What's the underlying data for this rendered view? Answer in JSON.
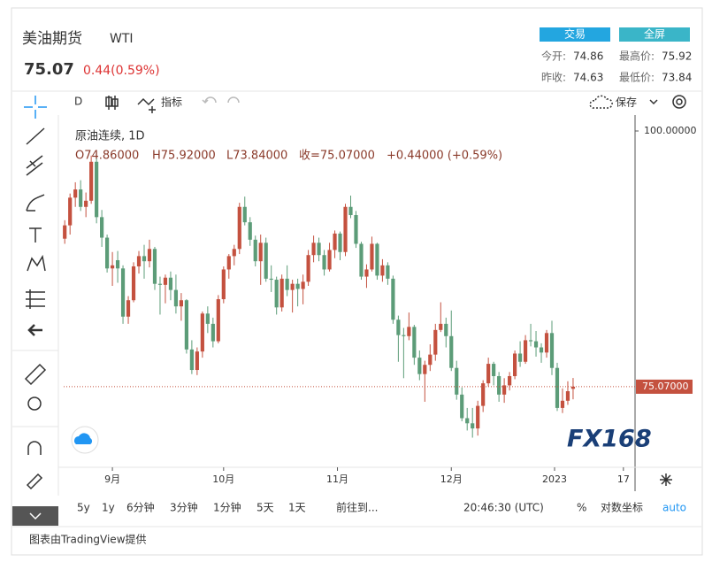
{
  "header": {
    "title": "美油期货",
    "symbol": "WTI",
    "price": "75.07",
    "change": "0.44(0.59%)",
    "trade_button": "交易",
    "fullscreen_button": "全屏",
    "stats": [
      {
        "label": "今开:",
        "value": "74.86"
      },
      {
        "label": "最高价:",
        "value": "75.92"
      },
      {
        "label": "昨收:",
        "value": "74.63"
      },
      {
        "label": "最低价:",
        "value": "73.84"
      }
    ]
  },
  "toolbar": {
    "interval": "D",
    "indicators": "指标",
    "save": "保存"
  },
  "legend": {
    "name": "原油连续, 1D",
    "open": "O74.86000",
    "high": "H75.92000",
    "low": "L73.84000",
    "close": "收=75.07000",
    "change": "+0.44000 (+0.59%)"
  },
  "watermark": "FX168",
  "bottom_bar": {
    "ranges": [
      "5y",
      "1y",
      "6分钟",
      "3分钟",
      "1分钟",
      "5天",
      "1天"
    ],
    "goto": "前往到...",
    "time": "20:46:30 (UTC)",
    "percent": "%",
    "log": "对数坐标",
    "auto": "auto"
  },
  "footer": "图表由TradingView提供",
  "chart_data": {
    "type": "candlestick",
    "up_color": "#c4513f",
    "down_color": "#5c9c78",
    "ylim": [
      67.47,
      100.69
    ],
    "yticks": [
      {
        "value": 100,
        "label": "100.00000"
      }
    ],
    "last_price": {
      "value": 75.07,
      "label": "75.07000"
    },
    "xlim": [
      -0.2,
      107.7
    ],
    "xticks": [
      {
        "value": 9,
        "label": "9月"
      },
      {
        "value": 30,
        "label": "10月"
      },
      {
        "value": 51.5,
        "label": "11月"
      },
      {
        "value": 73,
        "label": "12月"
      },
      {
        "value": 92.5,
        "label": "2023"
      },
      {
        "value": 105.5,
        "label": "17"
      }
    ],
    "ohlc": [
      [
        89.5,
        91.3,
        89.0,
        90.8
      ],
      [
        90.8,
        93.9,
        89.9,
        93.5
      ],
      [
        93.5,
        95.0,
        92.6,
        94.3
      ],
      [
        94.3,
        95.2,
        92.2,
        92.6
      ],
      [
        92.6,
        94.0,
        91.6,
        93.2
      ],
      [
        93.2,
        97.6,
        92.9,
        97.0
      ],
      [
        97.0,
        97.3,
        91.0,
        91.6
      ],
      [
        91.6,
        92.3,
        88.7,
        89.6
      ],
      [
        89.6,
        89.9,
        86.2,
        86.6
      ],
      [
        86.6,
        88.2,
        84.9,
        86.9
      ],
      [
        87.4,
        88.3,
        85.2,
        86.6
      ],
      [
        86.6,
        86.9,
        81.2,
        81.9
      ],
      [
        81.9,
        83.9,
        81.2,
        83.5
      ],
      [
        83.5,
        87.2,
        83.3,
        86.8
      ],
      [
        86.8,
        88.3,
        86.1,
        87.8
      ],
      [
        87.8,
        88.9,
        85.6,
        87.3
      ],
      [
        87.3,
        89.4,
        86.7,
        88.5
      ],
      [
        88.5,
        88.7,
        84.5,
        85.1
      ],
      [
        85.1,
        85.8,
        82.1,
        85.0
      ],
      [
        85.0,
        86.0,
        83.2,
        85.7
      ],
      [
        85.7,
        86.3,
        83.5,
        84.5
      ],
      [
        84.5,
        86.0,
        82.2,
        82.9
      ],
      [
        82.9,
        84.2,
        81.5,
        83.5
      ],
      [
        83.5,
        83.6,
        78.3,
        78.7
      ],
      [
        78.7,
        79.6,
        76.3,
        76.7
      ],
      [
        76.7,
        78.9,
        76.2,
        78.5
      ],
      [
        78.5,
        82.4,
        77.9,
        82.2
      ],
      [
        82.2,
        82.9,
        80.3,
        81.2
      ],
      [
        81.2,
        81.8,
        78.9,
        79.5
      ],
      [
        79.5,
        84.0,
        79.3,
        83.6
      ],
      [
        83.6,
        86.8,
        83.2,
        86.5
      ],
      [
        86.5,
        88.0,
        85.6,
        87.8
      ],
      [
        87.8,
        88.9,
        86.9,
        88.5
      ],
      [
        88.5,
        93.0,
        88.0,
        92.6
      ],
      [
        92.6,
        93.6,
        90.8,
        91.1
      ],
      [
        91.1,
        91.6,
        88.8,
        89.4
      ],
      [
        89.4,
        89.8,
        86.8,
        87.3
      ],
      [
        87.3,
        89.9,
        85.0,
        89.1
      ],
      [
        89.1,
        89.6,
        85.3,
        85.6
      ],
      [
        85.6,
        86.9,
        84.3,
        85.5
      ],
      [
        85.5,
        85.8,
        82.1,
        82.8
      ],
      [
        82.8,
        86.0,
        82.4,
        85.6
      ],
      [
        85.6,
        86.9,
        83.9,
        84.5
      ],
      [
        84.5,
        85.5,
        82.3,
        85.1
      ],
      [
        85.1,
        85.6,
        82.9,
        84.6
      ],
      [
        84.6,
        86.0,
        83.1,
        85.3
      ],
      [
        85.3,
        88.4,
        84.9,
        87.9
      ],
      [
        87.9,
        89.8,
        87.2,
        89.1
      ],
      [
        89.1,
        89.6,
        87.3,
        87.9
      ],
      [
        87.9,
        88.4,
        85.9,
        86.5
      ],
      [
        86.5,
        89.1,
        86.3,
        88.4
      ],
      [
        88.4,
        90.3,
        87.6,
        90.0
      ],
      [
        90.0,
        90.2,
        87.4,
        88.2
      ],
      [
        88.2,
        92.9,
        87.8,
        92.6
      ],
      [
        92.6,
        93.7,
        91.5,
        91.8
      ],
      [
        91.8,
        92.2,
        88.6,
        89.0
      ],
      [
        89.0,
        89.2,
        85.5,
        85.8
      ],
      [
        85.8,
        87.0,
        84.7,
        86.5
      ],
      [
        86.5,
        89.7,
        86.3,
        89.0
      ],
      [
        89.0,
        89.1,
        85.5,
        85.9
      ],
      [
        85.9,
        87.5,
        85.3,
        86.9
      ],
      [
        86.9,
        87.2,
        85.0,
        85.6
      ],
      [
        85.6,
        85.9,
        81.2,
        81.6
      ],
      [
        81.6,
        82.0,
        77.5,
        80.1
      ],
      [
        80.1,
        80.8,
        75.9,
        80.0
      ],
      [
        80.0,
        82.3,
        79.6,
        80.9
      ],
      [
        80.9,
        81.1,
        77.2,
        77.9
      ],
      [
        77.9,
        78.6,
        75.7,
        76.3
      ],
      [
        76.3,
        77.6,
        73.6,
        77.2
      ],
      [
        77.2,
        79.2,
        76.6,
        78.2
      ],
      [
        78.2,
        81.2,
        77.6,
        80.6
      ],
      [
        80.6,
        83.3,
        80.4,
        81.2
      ],
      [
        81.2,
        81.8,
        78.9,
        80.0
      ],
      [
        80.0,
        82.5,
        76.6,
        76.9
      ],
      [
        76.9,
        77.6,
        73.8,
        74.3
      ],
      [
        74.3,
        75.0,
        71.7,
        72.0
      ],
      [
        72.0,
        73.0,
        70.8,
        71.5
      ],
      [
        71.5,
        73.0,
        70.1,
        71.0
      ],
      [
        71.0,
        73.7,
        70.3,
        73.2
      ],
      [
        73.2,
        75.7,
        72.6,
        75.4
      ],
      [
        75.4,
        77.9,
        75.1,
        77.3
      ],
      [
        77.3,
        77.5,
        75.2,
        76.1
      ],
      [
        76.1,
        76.5,
        73.6,
        74.3
      ],
      [
        74.3,
        75.9,
        73.5,
        75.2
      ],
      [
        75.2,
        76.5,
        74.7,
        76.1
      ],
      [
        76.1,
        78.6,
        75.8,
        78.3
      ],
      [
        78.3,
        79.5,
        77.0,
        77.5
      ],
      [
        77.5,
        80.1,
        77.3,
        79.6
      ],
      [
        79.6,
        81.2,
        79.0,
        79.5
      ],
      [
        79.5,
        80.5,
        78.0,
        78.9
      ],
      [
        78.9,
        79.3,
        77.4,
        78.4
      ],
      [
        78.4,
        80.6,
        77.9,
        80.3
      ],
      [
        80.3,
        81.5,
        76.2,
        76.9
      ],
      [
        76.9,
        77.4,
        72.7,
        73.0
      ],
      [
        73.0,
        74.9,
        72.5,
        73.7
      ],
      [
        73.7,
        75.6,
        73.3,
        74.63
      ],
      [
        74.86,
        75.92,
        73.84,
        75.07
      ]
    ]
  }
}
